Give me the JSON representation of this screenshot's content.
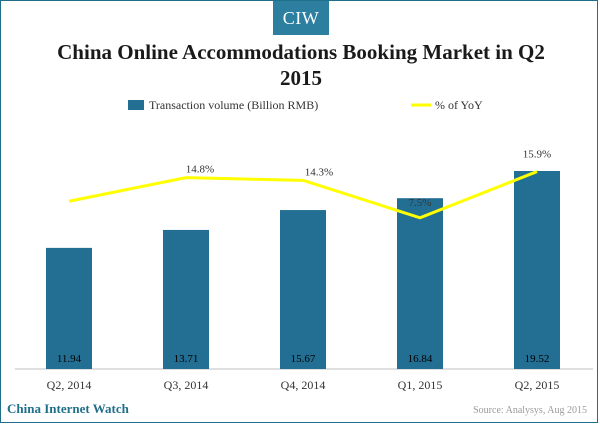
{
  "header": {
    "badge": "CIW"
  },
  "footer": {
    "brand": "China Internet Watch",
    "source": "Source: Analysys, Aug 2015"
  },
  "colors": {
    "bar": "#236f93",
    "line": "#ffff00",
    "accent": "#2c7f9f"
  },
  "chart_data": {
    "type": "bar",
    "title": "China Online Accommodations Booking Market in Q2 2015",
    "categories": [
      "Q2, 2014",
      "Q3, 2014",
      "Q4, 2014",
      "Q1, 2015",
      "Q2, 2015"
    ],
    "series": [
      {
        "name": "Transaction volume (Billion RMB)",
        "type": "bar",
        "values": [
          11.94,
          13.71,
          15.67,
          16.84,
          19.52
        ],
        "labels": [
          "11.94",
          "13.71",
          "15.67",
          "16.84",
          "19.52"
        ]
      },
      {
        "name": "% of YoY",
        "type": "line",
        "values": [
          null,
          14.8,
          14.3,
          7.5,
          15.9
        ],
        "labels": [
          "",
          "14.8%",
          "14.3%",
          "7.5%",
          "15.9%"
        ],
        "plotted_values": [
          10.5,
          14.8,
          14.3,
          7.5,
          15.9
        ]
      }
    ],
    "legend": {
      "position": "top"
    },
    "grid": false
  }
}
